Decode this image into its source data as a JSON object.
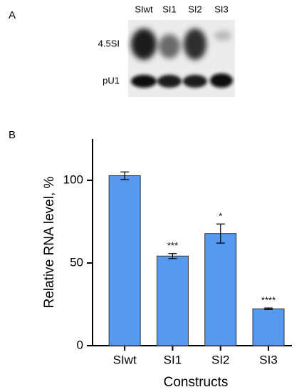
{
  "panel_a": {
    "label": "A",
    "lanes": [
      "SIwt",
      "SI1",
      "SI2",
      "SI3"
    ],
    "rows": [
      "4.5SI",
      "pU1"
    ]
  },
  "chart_data": {
    "type": "bar",
    "panel_label": "B",
    "categories": [
      "SIwt",
      "SI1",
      "SI2",
      "SI3"
    ],
    "values": [
      102.8,
      54.2,
      67.8,
      22.3
    ],
    "errors": [
      2.3,
      1.5,
      5.8,
      0.5
    ],
    "significance": [
      null,
      "***",
      "*",
      "****"
    ],
    "color": "#5599f0",
    "xlabel": "Constructs",
    "ylabel": "Relative RNA level, %",
    "ylim": [
      0,
      125
    ],
    "yticks": [
      0,
      50,
      100
    ]
  }
}
